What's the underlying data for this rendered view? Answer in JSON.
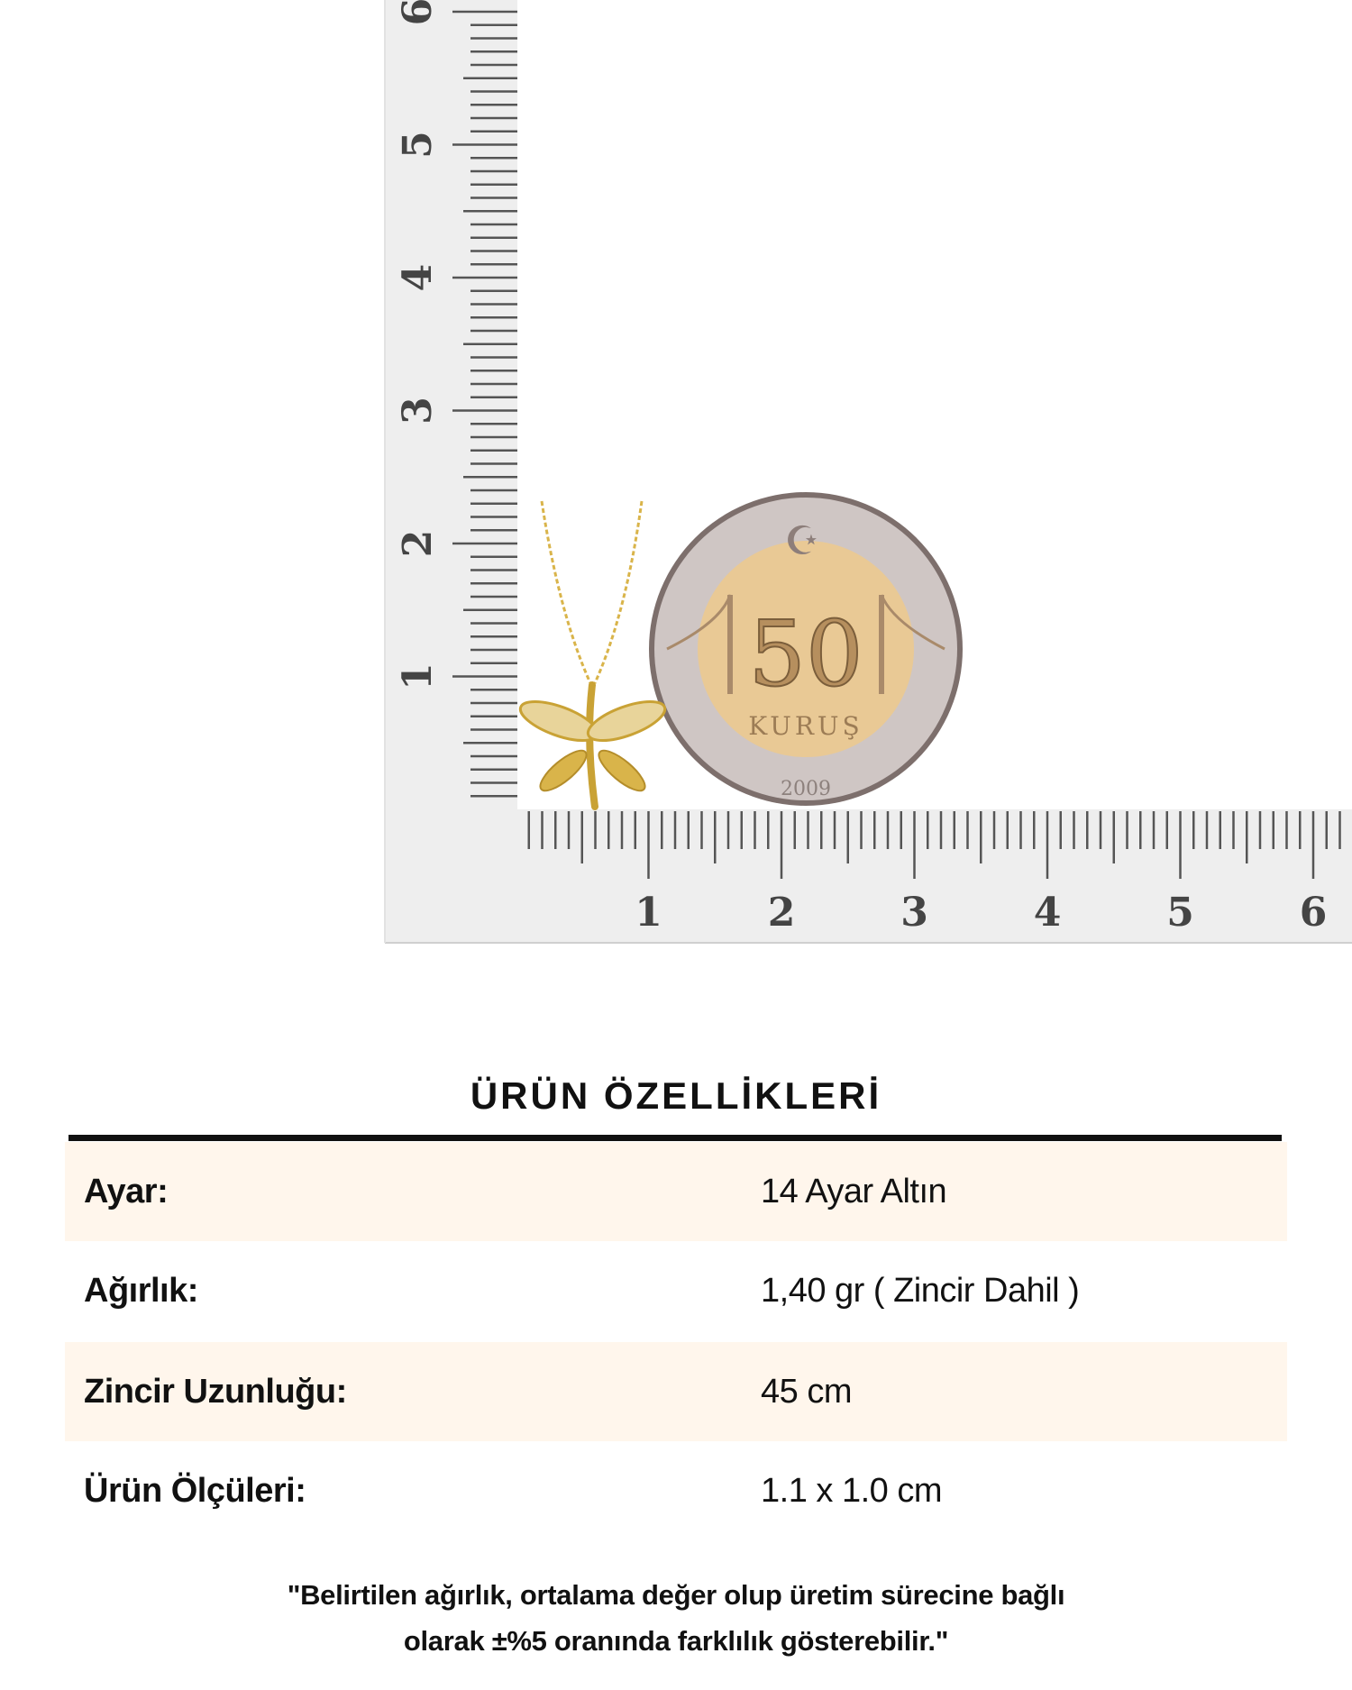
{
  "ruler": {
    "vertical_labels": [
      "1",
      "2",
      "3",
      "4",
      "5",
      "6"
    ],
    "horizontal_labels": [
      "1",
      "2",
      "3",
      "4",
      "5",
      "6"
    ],
    "unit": "cm"
  },
  "coin": {
    "value": "50",
    "label": "KURUŞ",
    "year": "2009"
  },
  "specs": {
    "title": "ÜRÜN ÖZELLİKLERİ",
    "rows": [
      {
        "label": "Ayar:",
        "value": "14 Ayar Altın"
      },
      {
        "label": "Ağırlık:",
        "value": "1,40 gr ( Zincir Dahil )"
      },
      {
        "label": "Zincir Uzunluğu:",
        "value": "45 cm"
      },
      {
        "label": "Ürün Ölçüleri:",
        "value": "1.1 x 1.0 cm"
      }
    ],
    "note_line1": "\"Belirtilen ağırlık, ortalama değer olup üretim sürecine bağlı",
    "note_line2": "olarak ±%5 oranında farklılık gösterebilir.\""
  },
  "colors": {
    "row_shade": "#fff6ec",
    "ruler_bg": "#eeeeee",
    "gold": "#d9b44a"
  }
}
